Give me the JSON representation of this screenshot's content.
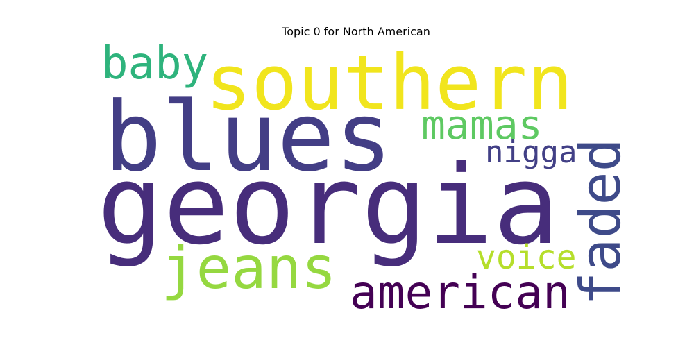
{
  "chart_data": {
    "type": "wordcloud",
    "title": "Topic 0 for North American",
    "words": [
      {
        "text": "georgia",
        "weight": 1.0,
        "color": "#472d7b"
      },
      {
        "text": "blues",
        "weight": 0.73,
        "color": "#433e85"
      },
      {
        "text": "southern",
        "weight": 0.71,
        "color": "#f1e51d"
      },
      {
        "text": "jeans",
        "weight": 0.41,
        "color": "#95d840"
      },
      {
        "text": "faded",
        "weight": 0.38,
        "color": "#3e4a89"
      },
      {
        "text": "american",
        "weight": 0.36,
        "color": "#440154"
      },
      {
        "text": "baby",
        "weight": 0.34,
        "color": "#2eb37c"
      },
      {
        "text": "mamas",
        "weight": 0.3,
        "color": "#5ec962"
      },
      {
        "text": "voice",
        "weight": 0.26,
        "color": "#b5de2b"
      },
      {
        "text": "nigga",
        "weight": 0.23,
        "color": "#424086"
      }
    ]
  }
}
